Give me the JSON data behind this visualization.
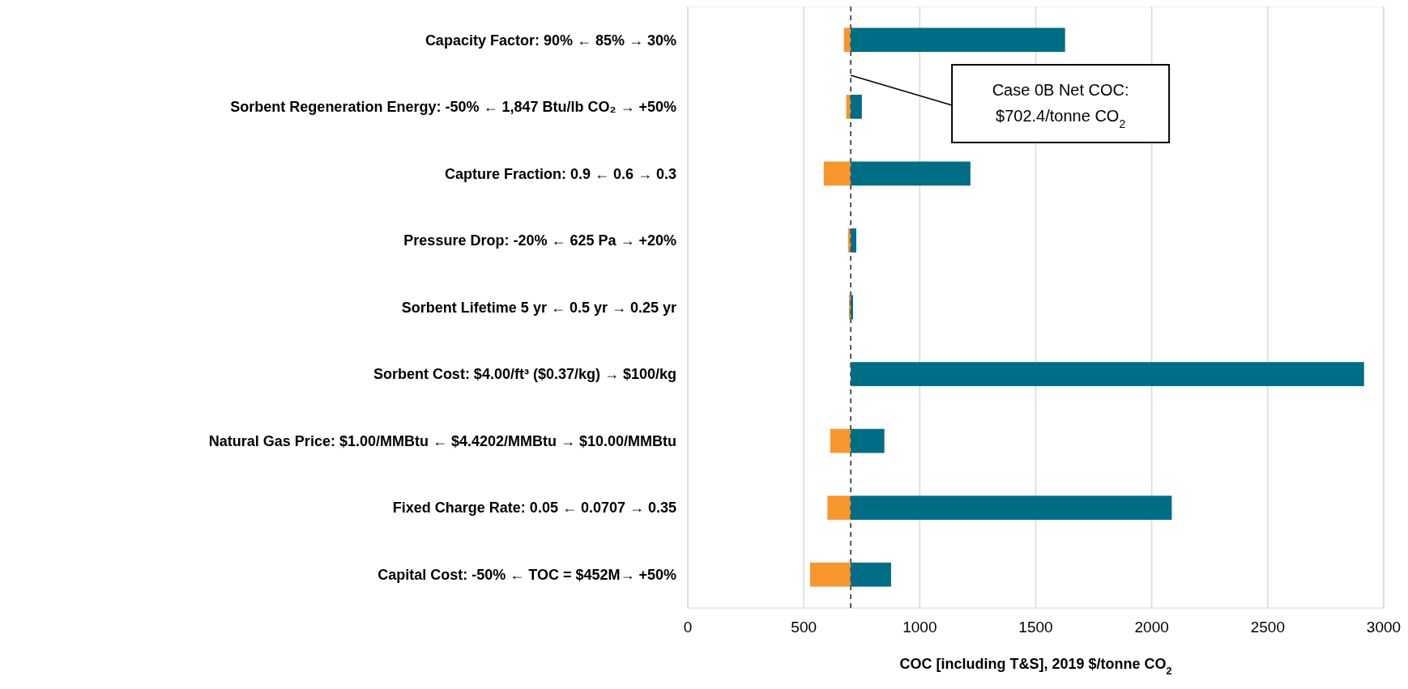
{
  "chart_data": {
    "type": "bar",
    "orientation": "horizontal",
    "categories": [
      "Capacity Factor: 90% ← 85% → 30%",
      "Sorbent Regeneration Energy: -50% ← 1,847 Btu/lb CO₂ → +50%",
      "Capture Fraction:  0.9 ← 0.6 → 0.3",
      "Pressure Drop: -20% ← 625 Pa → +20%",
      "Sorbent Lifetime 5 yr ← 0.5 yr → 0.25 yr",
      "Sorbent Cost: $4.00/ft³ ($0.37/kg) → $100/kg",
      "Natural Gas Price: $1.00/MMBtu ← $4.4202/MMBtu → $10.00/MMBtu",
      "Fixed Charge Rate: 0.05 ← 0.0707 → 0.35",
      "Capital Cost: -50% ← TOC = $452M→ +50%"
    ],
    "series": [
      {
        "color": "#f7962e",
        "base": [
          673,
          683,
          586,
          691,
          695,
          null,
          614,
          602,
          527
        ],
        "values": [
          29,
          19,
          116,
          11,
          7,
          null,
          88,
          100,
          175
        ]
      },
      {
        "color": "#006d86",
        "base": [
          702.4,
          702.4,
          702.4,
          702.4,
          702.4,
          702.4,
          702.4,
          702.4,
          702.4
        ],
        "values": [
          924,
          48,
          516,
          24,
          10,
          2213,
          145,
          1384,
          174
        ]
      }
    ],
    "xlim": [
      0,
      3000
    ],
    "xticks": [
      0,
      500,
      1000,
      1500,
      2000,
      2500,
      3000
    ],
    "grid": "x",
    "xlabel": "COC [including T&S], 2019 $/tonne CO$_{2}$",
    "annotations": [
      "Case 0B Net COC:\n$702.4/tonne CO$_{2}$"
    ],
    "ref_lines": [
      {
        "axis": "x",
        "value": 702.4,
        "color": "#555555",
        "line_style": "dashed"
      }
    ]
  }
}
